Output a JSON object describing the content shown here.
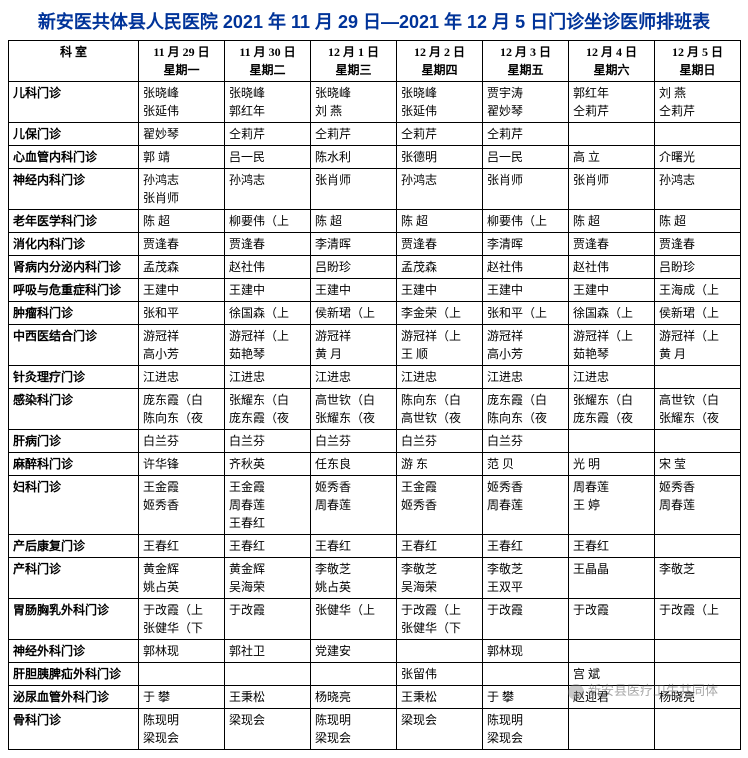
{
  "title": "新安医共体县人民医院 2021 年 11 月 29 日—2021 年 12 月 5 日门诊坐诊医师排班表",
  "header": {
    "dept": "科  室",
    "days": [
      {
        "date": "11 月 29 日",
        "weekday": "星期一"
      },
      {
        "date": "11 月 30 日",
        "weekday": "星期二"
      },
      {
        "date": "12 月 1 日",
        "weekday": "星期三"
      },
      {
        "date": "12 月 2 日",
        "weekday": "星期四"
      },
      {
        "date": "12 月 3 日",
        "weekday": "星期五"
      },
      {
        "date": "12 月 4 日",
        "weekday": "星期六"
      },
      {
        "date": "12 月 5 日",
        "weekday": "星期日"
      }
    ]
  },
  "rows": [
    {
      "dept": "儿科门诊",
      "cells": [
        [
          "张晓峰",
          "张延伟"
        ],
        [
          "张晓峰",
          "郭红年"
        ],
        [
          "张晓峰",
          "刘 燕"
        ],
        [
          "张晓峰",
          "张延伟"
        ],
        [
          "贾宇涛",
          "翟妙琴"
        ],
        [
          "郭红年",
          "仝莉芹"
        ],
        [
          "刘 燕",
          "仝莉芹"
        ]
      ]
    },
    {
      "dept": "儿保门诊",
      "cells": [
        [
          "翟妙琴"
        ],
        [
          "仝莉芹"
        ],
        [
          "仝莉芹"
        ],
        [
          "仝莉芹"
        ],
        [
          "仝莉芹"
        ],
        [
          ""
        ],
        [
          ""
        ]
      ]
    },
    {
      "dept": "心血管内科门诊",
      "cells": [
        [
          "郭 靖"
        ],
        [
          "吕一民"
        ],
        [
          "陈水利"
        ],
        [
          "张德明"
        ],
        [
          "吕一民"
        ],
        [
          "高 立"
        ],
        [
          "介曙光"
        ]
      ]
    },
    {
      "dept": "神经内科门诊",
      "cells": [
        [
          "孙鸿志",
          "张肖师"
        ],
        [
          "孙鸿志"
        ],
        [
          "张肖师"
        ],
        [
          "孙鸿志"
        ],
        [
          "张肖师"
        ],
        [
          "张肖师"
        ],
        [
          "孙鸿志"
        ]
      ]
    },
    {
      "dept": "老年医学科门诊",
      "cells": [
        [
          "陈 超"
        ],
        [
          "柳要伟（上"
        ],
        [
          "陈 超"
        ],
        [
          "陈 超"
        ],
        [
          "柳要伟（上"
        ],
        [
          "陈 超"
        ],
        [
          "陈 超"
        ]
      ]
    },
    {
      "dept": "消化内科门诊",
      "cells": [
        [
          "贾逢春"
        ],
        [
          "贾逢春"
        ],
        [
          "李清晖"
        ],
        [
          "贾逢春"
        ],
        [
          "李清晖"
        ],
        [
          "贾逢春"
        ],
        [
          "贾逢春"
        ]
      ]
    },
    {
      "dept": "肾病内分泌内科门诊",
      "cells": [
        [
          "孟茂森"
        ],
        [
          "赵社伟"
        ],
        [
          "吕盼珍"
        ],
        [
          "孟茂森"
        ],
        [
          "赵社伟"
        ],
        [
          "赵社伟"
        ],
        [
          "吕盼珍"
        ]
      ]
    },
    {
      "dept": "呼吸与危重症科门诊",
      "cells": [
        [
          "王建中"
        ],
        [
          "王建中"
        ],
        [
          "王建中"
        ],
        [
          "王建中"
        ],
        [
          "王建中"
        ],
        [
          "王建中"
        ],
        [
          "王海成（上"
        ]
      ]
    },
    {
      "dept": "肿瘤科门诊",
      "cells": [
        [
          "张和平"
        ],
        [
          "徐国森（上"
        ],
        [
          "侯新珺（上"
        ],
        [
          "李金荣（上"
        ],
        [
          "张和平（上"
        ],
        [
          "徐国森（上"
        ],
        [
          "侯新珺（上"
        ]
      ]
    },
    {
      "dept": "中西医结合门诊",
      "cells": [
        [
          "游冠祥",
          "高小芳"
        ],
        [
          "游冠祥（上",
          "茹艳琴"
        ],
        [
          "游冠祥",
          "黄 月"
        ],
        [
          "游冠祥（上",
          "王 顺"
        ],
        [
          "游冠祥",
          "高小芳"
        ],
        [
          "游冠祥（上",
          "茹艳琴"
        ],
        [
          "游冠祥（上",
          "黄 月"
        ]
      ]
    },
    {
      "dept": "针灸理疗门诊",
      "cells": [
        [
          "江进忠"
        ],
        [
          "江进忠"
        ],
        [
          "江进忠"
        ],
        [
          "江进忠"
        ],
        [
          "江进忠"
        ],
        [
          "江进忠"
        ],
        [
          ""
        ]
      ]
    },
    {
      "dept": "感染科门诊",
      "cells": [
        [
          "庞东霞（白",
          "陈向东（夜"
        ],
        [
          "张耀东（白",
          "庞东霞（夜"
        ],
        [
          "高世钦（白",
          "张耀东（夜"
        ],
        [
          "陈向东（白",
          "高世钦（夜"
        ],
        [
          "庞东霞（白",
          "陈向东（夜"
        ],
        [
          "张耀东（白",
          "庞东霞（夜"
        ],
        [
          "高世钦（白",
          "张耀东（夜"
        ]
      ]
    },
    {
      "dept": "肝病门诊",
      "cells": [
        [
          "白兰芬"
        ],
        [
          "白兰芬"
        ],
        [
          "白兰芬"
        ],
        [
          "白兰芬"
        ],
        [
          "白兰芬"
        ],
        [
          ""
        ],
        [
          ""
        ]
      ]
    },
    {
      "dept": "麻醉科门诊",
      "cells": [
        [
          "许华锋"
        ],
        [
          "齐秋英"
        ],
        [
          "任东良"
        ],
        [
          "游 东"
        ],
        [
          "范 贝"
        ],
        [
          "光 明"
        ],
        [
          "宋 莹"
        ]
      ]
    },
    {
      "dept": "妇科门诊",
      "cells": [
        [
          "王金霞",
          "姬秀香"
        ],
        [
          "王金霞",
          "周春莲",
          "王春红"
        ],
        [
          "姬秀香",
          "周春莲"
        ],
        [
          "王金霞",
          "姬秀香"
        ],
        [
          "姬秀香",
          "周春莲"
        ],
        [
          "周春莲",
          "王 婷"
        ],
        [
          "姬秀香",
          "周春莲"
        ]
      ]
    },
    {
      "dept": "产后康复门诊",
      "cells": [
        [
          "王春红"
        ],
        [
          "王春红"
        ],
        [
          "王春红"
        ],
        [
          "王春红"
        ],
        [
          "王春红"
        ],
        [
          "王春红"
        ],
        [
          ""
        ]
      ]
    },
    {
      "dept": "产科门诊",
      "cells": [
        [
          "黄金辉",
          "姚占英"
        ],
        [
          "黄金辉",
          "吴海荣"
        ],
        [
          "李敬芝",
          "姚占英"
        ],
        [
          "李敬芝",
          "吴海荣"
        ],
        [
          "李敬芝",
          "王双平"
        ],
        [
          "王晶晶"
        ],
        [
          "李敬芝"
        ]
      ]
    },
    {
      "dept": "胃肠胸乳外科门诊",
      "cells": [
        [
          "于改霞（上",
          "张健华（下"
        ],
        [
          "于改霞"
        ],
        [
          "张健华（上"
        ],
        [
          "于改霞（上",
          "张健华（下"
        ],
        [
          "于改霞"
        ],
        [
          "于改霞"
        ],
        [
          "于改霞（上"
        ]
      ]
    },
    {
      "dept": "神经外科门诊",
      "cells": [
        [
          "郭林现"
        ],
        [
          "郭社卫"
        ],
        [
          "党建安"
        ],
        [
          ""
        ],
        [
          "郭林现"
        ],
        [
          ""
        ],
        [
          ""
        ]
      ]
    },
    {
      "dept": "肝胆胰脾疝外科门诊",
      "cells": [
        [
          ""
        ],
        [
          ""
        ],
        [
          ""
        ],
        [
          "张留伟"
        ],
        [
          ""
        ],
        [
          "宫 斌"
        ],
        [
          ""
        ]
      ]
    },
    {
      "dept": "泌尿血管外科门诊",
      "cells": [
        [
          "于 攀"
        ],
        [
          "王秉松"
        ],
        [
          "杨晓亮"
        ],
        [
          "王秉松"
        ],
        [
          "于 攀"
        ],
        [
          "赵迎君"
        ],
        [
          "杨晓亮"
        ]
      ]
    },
    {
      "dept": "骨科门诊",
      "cells": [
        [
          "陈现明",
          "梁现会"
        ],
        [
          "梁现会"
        ],
        [
          "陈现明",
          "梁现会"
        ],
        [
          "梁现会"
        ],
        [
          "陈现明",
          "梁现会"
        ],
        [
          ""
        ],
        [
          ""
        ]
      ]
    }
  ],
  "watermark": "新安县医疗卫生共同体",
  "style": {
    "title_color": "#003399",
    "border_color": "#000000",
    "background": "#ffffff",
    "font_size_body": 12,
    "font_size_title": 18
  }
}
